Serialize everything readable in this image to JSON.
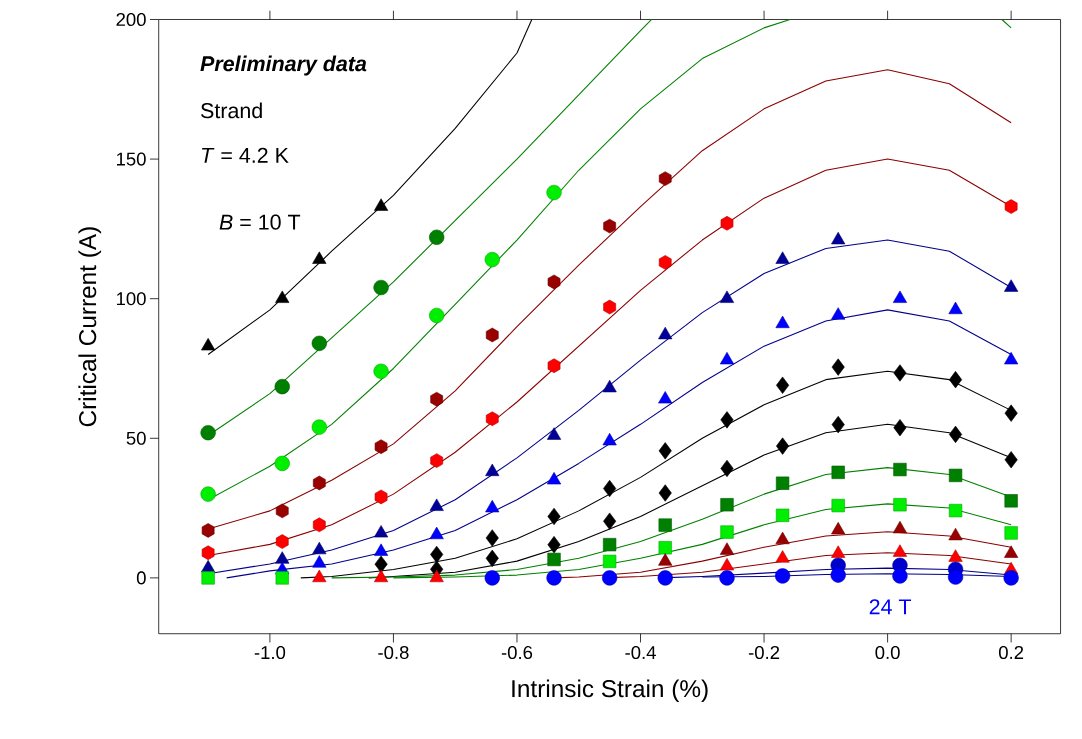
{
  "chart_data": {
    "type": "scatter",
    "xlabel": "Intrinsic Strain (%)",
    "ylabel": "Critical Current (A)",
    "xlim": [
      -1.18,
      0.28
    ],
    "ylim": [
      -20,
      200
    ],
    "xticks": [
      {
        "value": -1.0,
        "label": "-1.0"
      },
      {
        "value": -0.8,
        "label": "-0.8"
      },
      {
        "value": -0.6,
        "label": "-0.6"
      },
      {
        "value": -0.4,
        "label": "-0.4"
      },
      {
        "value": -0.2,
        "label": "-0.2"
      },
      {
        "value": 0.0,
        "label": "0.0"
      },
      {
        "value": 0.2,
        "label": "0.2"
      }
    ],
    "yticks": [
      0,
      50,
      100,
      150,
      200
    ],
    "grid": false,
    "annotations": [
      "Preliminary data",
      "Strand",
      "*T* = 4.2 K",
      "*B* = 10 T",
      "24 T"
    ],
    "x": [
      -1.1,
      -0.98,
      -0.92,
      -0.82,
      -0.73,
      -0.64,
      -0.54,
      -0.45,
      -0.36,
      -0.26,
      -0.17,
      -0.08,
      0.02,
      0.11,
      0.2
    ],
    "series": [
      {
        "marker": "triangle",
        "color": "#000000",
        "values": [
          83,
          100,
          114,
          133,
          null,
          null,
          null,
          null,
          null,
          null,
          null,
          null,
          null,
          null,
          null
        ]
      },
      {
        "marker": "circle",
        "color": "#008000",
        "values": [
          52,
          68.5,
          84,
          104,
          122,
          null,
          null,
          null,
          null,
          null,
          null,
          null,
          null,
          null,
          null
        ]
      },
      {
        "marker": "circle",
        "color": "#00ee00",
        "values": [
          30,
          41,
          54,
          74,
          94,
          114,
          138,
          null,
          null,
          null,
          null,
          null,
          null,
          null,
          null
        ]
      },
      {
        "color": "#990000",
        "values": [
          17,
          24,
          34,
          47,
          64,
          87,
          106,
          126,
          143,
          null,
          null,
          null,
          null,
          null,
          null
        ]
      },
      {
        "color": "#ff0000",
        "values": [
          9,
          13,
          19,
          29,
          42,
          57,
          76,
          97,
          113,
          127,
          null,
          null,
          null,
          null,
          133
        ]
      },
      {
        "marker": "triangle",
        "color": "#000099",
        "values": [
          3.5,
          6.6,
          10,
          16,
          25.5,
          38,
          51,
          68,
          87,
          100,
          114,
          121,
          null,
          null,
          104
        ]
      },
      {
        "marker": "triangle",
        "color": "#0000ff",
        "values": [
          null,
          2.8,
          5.2,
          9.4,
          15.4,
          25,
          35,
          49,
          64,
          78,
          91,
          94,
          100,
          96,
          78
        ]
      },
      {
        "marker": "diamond",
        "color": "#000000",
        "values": [
          null,
          null,
          null,
          4.9,
          8.4,
          14.3,
          22,
          32,
          45.5,
          56.6,
          69,
          75.5,
          73.4,
          71,
          59
        ]
      },
      {
        "marker": "diamond",
        "color": "#000000",
        "values": [
          null,
          null,
          null,
          null,
          3.1,
          7,
          11.9,
          20.3,
          30.4,
          39.2,
          47.2,
          54.9,
          53.8,
          51.4,
          42.3
        ]
      },
      {
        "marker": "square",
        "color": "#008000",
        "values": [
          null,
          null,
          null,
          null,
          null,
          null,
          6.6,
          11.9,
          18.9,
          26.2,
          33.9,
          37.8,
          38.8,
          36.7,
          27.6
        ]
      },
      {
        "marker": "square",
        "color": "#00ee00",
        "values": [
          0,
          0,
          null,
          null,
          null,
          null,
          null,
          5.9,
          10.8,
          16.4,
          22.4,
          25.9,
          26.2,
          24.1,
          16.1
        ]
      },
      {
        "marker": "triangle",
        "color": "#990000",
        "values": [
          null,
          null,
          null,
          null,
          null,
          null,
          null,
          null,
          5.9,
          9.8,
          13.6,
          17.1,
          17.5,
          15,
          8.7
        ]
      },
      {
        "marker": "triangle",
        "color": "#ff0000",
        "values": [
          null,
          null,
          0,
          0,
          0,
          null,
          null,
          null,
          null,
          4.2,
          7,
          8.7,
          9.1,
          7.3,
          2.8
        ]
      },
      {
        "marker": "circle",
        "color": "#0000cc",
        "values": [
          null,
          null,
          null,
          null,
          null,
          null,
          null,
          null,
          null,
          null,
          null,
          4.5,
          4.5,
          3.1,
          null
        ]
      },
      {
        "marker": "circle",
        "color": "#0000ff",
        "values": [
          null,
          null,
          null,
          null,
          null,
          0,
          0,
          0,
          0,
          0,
          0.7,
          1,
          0.7,
          0.3,
          0
        ]
      },
      {
        "type": "line",
        "color": "#000000",
        "x": [
          -1.1,
          -1.0,
          -0.9,
          -0.8,
          -0.7,
          -0.6,
          -0.576
        ],
        "values": [
          80,
          96,
          117,
          137,
          161,
          188,
          200
        ]
      },
      {
        "type": "line",
        "color": "#008000",
        "x": [
          -1.1,
          -1.0,
          -0.9,
          -0.8,
          -0.7,
          -0.6,
          -0.5,
          -0.4,
          -0.382
        ],
        "values": [
          51,
          66,
          86,
          106,
          128,
          150,
          173,
          196,
          200
        ]
      },
      {
        "type": "line",
        "color": "#008000",
        "x": [
          -1.1,
          -1.0,
          -0.9,
          -0.8,
          -0.7,
          -0.6,
          -0.5,
          -0.4,
          -0.3,
          -0.2,
          -0.158,
          0.0,
          0.185,
          0.2
        ],
        "values": [
          28,
          40,
          55,
          75,
          98,
          121,
          146,
          168,
          186,
          197,
          200,
          null,
          200,
          197
        ]
      },
      {
        "type": "line",
        "color": "#8b0000",
        "x": [
          -1.1,
          -1.0,
          -0.9,
          -0.8,
          -0.7,
          -0.6,
          -0.5,
          -0.4,
          -0.3,
          -0.2,
          -0.1,
          0.0,
          0.1,
          0.2
        ],
        "values": [
          17.5,
          24,
          35,
          48,
          67,
          90,
          112,
          133,
          153,
          168,
          178,
          182,
          177,
          163
        ]
      },
      {
        "type": "line",
        "color": "#8b0000",
        "x": [
          -1.1,
          -1.0,
          -0.9,
          -0.8,
          -0.7,
          -0.6,
          -0.5,
          -0.4,
          -0.3,
          -0.2,
          -0.1,
          0.0,
          0.1,
          0.2
        ],
        "values": [
          8,
          12,
          19,
          30,
          45,
          63,
          83,
          103,
          121,
          136,
          146,
          150,
          146,
          133
        ]
      },
      {
        "type": "line",
        "color": "#00008b",
        "x": [
          -1.1,
          -1.0,
          -0.9,
          -0.8,
          -0.7,
          -0.6,
          -0.5,
          -0.4,
          -0.3,
          -0.2,
          -0.1,
          0.0,
          0.1,
          0.2
        ],
        "values": [
          1.5,
          5,
          10,
          17,
          28,
          43,
          60,
          78,
          95,
          109,
          118,
          121,
          117,
          104
        ]
      },
      {
        "type": "line",
        "color": "#00008b",
        "x": [
          -1.07,
          -1.0,
          -0.9,
          -0.8,
          -0.7,
          -0.6,
          -0.5,
          -0.4,
          -0.3,
          -0.2,
          -0.1,
          0.0,
          0.1,
          0.2
        ],
        "values": [
          0,
          2.5,
          5,
          10,
          17,
          28,
          41,
          55,
          70,
          83,
          92,
          96,
          92,
          80
        ]
      },
      {
        "type": "line",
        "color": "#000000",
        "x": [
          -0.95,
          -0.9,
          -0.8,
          -0.7,
          -0.6,
          -0.5,
          -0.4,
          -0.3,
          -0.2,
          -0.1,
          0.0,
          0.1,
          0.2
        ],
        "values": [
          0,
          0.5,
          3,
          7,
          14,
          24,
          36,
          50,
          62,
          71,
          74,
          71,
          60
        ]
      },
      {
        "type": "line",
        "color": "#000000",
        "x": [
          -0.84,
          -0.8,
          -0.7,
          -0.6,
          -0.5,
          -0.4,
          -0.3,
          -0.2,
          -0.1,
          0.0,
          0.1,
          0.2
        ],
        "values": [
          0,
          0.5,
          2,
          6,
          13,
          22,
          33,
          44,
          52,
          55,
          52,
          43
        ]
      },
      {
        "type": "line",
        "color": "#008000",
        "x": [
          -0.9,
          -0.8,
          -0.7,
          -0.6,
          -0.5,
          -0.4,
          -0.3,
          -0.2,
          -0.1,
          0.0,
          0.1,
          0.2
        ],
        "values": [
          0,
          0.3,
          1,
          3,
          7,
          13,
          21,
          30,
          37,
          39.5,
          37,
          29
        ]
      },
      {
        "type": "line",
        "color": "#008000",
        "x": [
          -0.8,
          -0.7,
          -0.6,
          -0.5,
          -0.4,
          -0.3,
          -0.2,
          -0.1,
          0.0,
          0.1,
          0.2
        ],
        "values": [
          0,
          0.3,
          1,
          3,
          7,
          12,
          19,
          24.5,
          26.5,
          25,
          19
        ]
      },
      {
        "type": "line",
        "color": "#8b0000",
        "x": [
          -0.54,
          -0.5,
          -0.4,
          -0.3,
          -0.2,
          -0.1,
          0.0,
          0.1,
          0.2
        ],
        "values": [
          0,
          0.3,
          2,
          6,
          11,
          15,
          16.5,
          15,
          11
        ]
      },
      {
        "type": "line",
        "color": "#8b0000",
        "x": [
          -0.46,
          -0.4,
          -0.3,
          -0.2,
          -0.1,
          0.0,
          0.1,
          0.2
        ],
        "values": [
          0,
          0.5,
          2,
          5,
          8,
          9,
          8,
          5
        ]
      },
      {
        "type": "line",
        "color": "#00008b",
        "x": [
          -0.37,
          -0.3,
          -0.2,
          -0.1,
          0.0,
          0.1,
          0.2
        ],
        "values": [
          0,
          0.5,
          1.7,
          3,
          3.5,
          3,
          1
        ]
      },
      {
        "type": "line",
        "color": "#00008b",
        "x": [
          -0.3,
          -0.2,
          -0.1,
          0.0,
          0.1,
          0.2
        ],
        "values": [
          0.3,
          0.5,
          1.2,
          1.5,
          1.2,
          0.5
        ]
      }
    ]
  }
}
